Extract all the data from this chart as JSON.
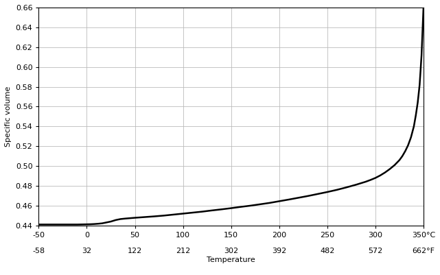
{
  "title": "",
  "ylabel": "Specific volume",
  "xlabel": "Temperature",
  "xlim": [
    -50,
    350
  ],
  "ylim": [
    0.44,
    0.66
  ],
  "xticks_c": [
    -50,
    0,
    50,
    100,
    150,
    200,
    250,
    300,
    350
  ],
  "xticks_f": [
    -58,
    32,
    122,
    212,
    302,
    392,
    482,
    572,
    662
  ],
  "yticks": [
    0.44,
    0.46,
    0.48,
    0.5,
    0.52,
    0.54,
    0.56,
    0.58,
    0.6,
    0.62,
    0.64,
    0.66
  ],
  "line_color": "#000000",
  "line_width": 1.8,
  "background_color": "#ffffff",
  "grid_color": "#bbbbbb",
  "curve_x": [
    -50,
    -40,
    -30,
    -20,
    -10,
    0,
    4,
    8,
    12,
    16,
    20,
    25,
    30,
    35,
    40,
    50,
    60,
    70,
    80,
    90,
    100,
    110,
    120,
    130,
    140,
    150,
    160,
    170,
    180,
    190,
    200,
    210,
    220,
    230,
    240,
    250,
    260,
    270,
    280,
    290,
    295,
    300,
    305,
    310,
    315,
    320,
    325,
    328,
    331,
    334,
    337,
    340,
    342,
    344,
    346,
    348,
    350
  ],
  "curve_y": [
    0.441,
    0.441,
    0.441,
    0.441,
    0.441,
    0.4412,
    0.4413,
    0.4415,
    0.4418,
    0.4422,
    0.443,
    0.444,
    0.4455,
    0.4465,
    0.447,
    0.4478,
    0.4485,
    0.4492,
    0.45,
    0.451,
    0.452,
    0.453,
    0.454,
    0.4552,
    0.4563,
    0.4575,
    0.4588,
    0.46,
    0.4614,
    0.4628,
    0.4645,
    0.4662,
    0.468,
    0.4698,
    0.4718,
    0.4738,
    0.476,
    0.4785,
    0.4812,
    0.4842,
    0.486,
    0.488,
    0.4905,
    0.4935,
    0.497,
    0.501,
    0.506,
    0.51,
    0.515,
    0.521,
    0.529,
    0.54,
    0.551,
    0.564,
    0.582,
    0.612,
    0.66
  ]
}
